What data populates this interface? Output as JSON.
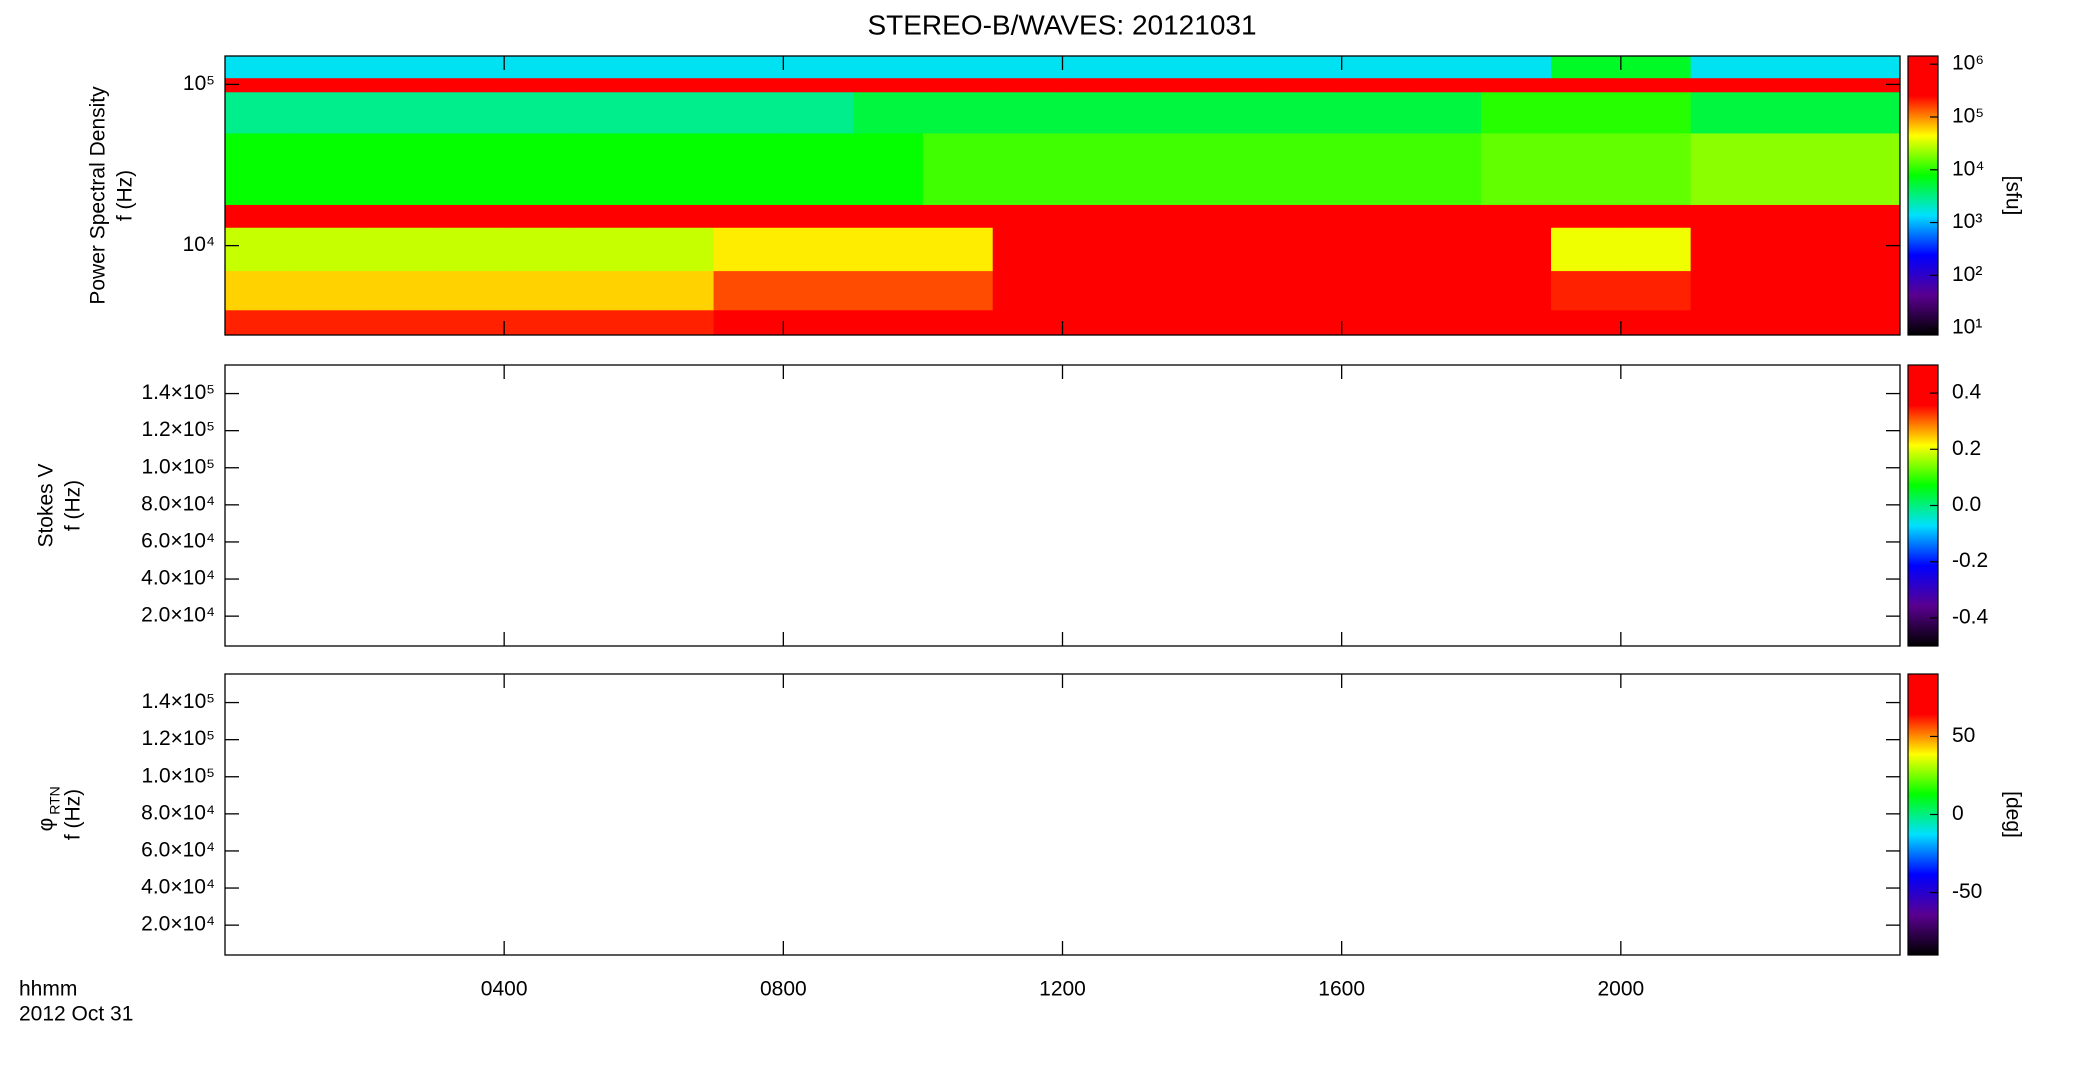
{
  "title": "STEREO-B/WAVES: 20121031",
  "colormap": [
    "#000000",
    "#5a0090",
    "#0000ff",
    "#00e0ff",
    "#00ff00",
    "#ffff00",
    "#ff0000",
    "#ff0000"
  ],
  "x_axis": {
    "label": "hhmm",
    "date": "2012 Oct 31",
    "xlim": [
      0,
      24
    ],
    "xticks": [
      {
        "value": 4,
        "label": "0400"
      },
      {
        "value": 8,
        "label": "0800"
      },
      {
        "value": 12,
        "label": "1200"
      },
      {
        "value": 16,
        "label": "1600"
      },
      {
        "value": 20,
        "label": "2000"
      }
    ]
  },
  "chart_data": [
    {
      "type": "heatmap",
      "ylabel": "Power Spectral Density",
      "ylabel2": "f (Hz)",
      "ylog": true,
      "ylim": [
        2790,
        150000
      ],
      "yticks": [
        {
          "value": 10000,
          "label": "10⁴"
        },
        {
          "value": 100000,
          "label": "10⁵"
        }
      ],
      "x_edges": [
        0,
        1,
        2,
        3,
        4,
        5,
        6,
        7,
        8,
        9,
        10,
        11,
        12,
        13,
        14,
        15,
        16,
        17,
        18,
        19,
        20,
        21,
        22,
        23,
        24
      ],
      "y_edges": [
        2790,
        4000,
        7000,
        13000,
        18000,
        50000,
        90000,
        110000,
        150000
      ],
      "z": [
        [
          200000,
          200000,
          200000,
          200000,
          200000,
          200000,
          200000,
          300000,
          300000,
          300000,
          300000,
          1000000,
          1000000,
          1000000,
          1000000,
          1000000,
          1000000,
          1000000,
          1000000,
          1000000,
          1000000,
          1000000,
          1000000,
          1000000
        ],
        [
          60000,
          60000,
          60000,
          60000,
          60000,
          60000,
          60000,
          150000,
          150000,
          150000,
          150000,
          1000000,
          1000000,
          1000000,
          1000000,
          1000000,
          1000000,
          1000000,
          1000000,
          200000,
          200000,
          1000000,
          1000000,
          1000000
        ],
        [
          30000,
          30000,
          30000,
          30000,
          30000,
          30000,
          30000,
          50000,
          50000,
          50000,
          50000,
          300000,
          300000,
          300000,
          300000,
          300000,
          300000,
          300000,
          300000,
          40000,
          40000,
          300000,
          300000,
          300000
        ],
        [
          1000000,
          1000000,
          1000000,
          1000000,
          1000000,
          1000000,
          1000000,
          1000000,
          1000000,
          1000000,
          1000000,
          1000000,
          1000000,
          1000000,
          1000000,
          1000000,
          1000000,
          1000000,
          1000000,
          1000000,
          1000000,
          1000000,
          1000000,
          1000000
        ],
        [
          8000,
          8000,
          8000,
          8000,
          8000,
          8000,
          8000,
          8000,
          8000,
          8000,
          12000,
          12000,
          12000,
          12000,
          12000,
          12000,
          12000,
          12000,
          15000,
          15000,
          15000,
          20000,
          20000,
          20000
        ],
        [
          3000,
          3000,
          3000,
          3000,
          3000,
          3000,
          3000,
          3000,
          3000,
          5000,
          5000,
          5000,
          5000,
          5000,
          5000,
          5000,
          5000,
          5000,
          10000,
          10000,
          10000,
          5000,
          5000,
          5000
        ],
        [
          500000,
          500000,
          500000,
          500000,
          500000,
          500000,
          500000,
          500000,
          500000,
          500000,
          500000,
          500000,
          500000,
          500000,
          500000,
          500000,
          500000,
          500000,
          500000,
          500000,
          500000,
          500000,
          500000,
          500000
        ],
        [
          1500,
          1500,
          1500,
          1500,
          1500,
          1500,
          1500,
          1500,
          1500,
          1500,
          1500,
          1500,
          1500,
          1500,
          1500,
          1500,
          1500,
          1500,
          1500,
          6000,
          6000,
          1500,
          1500,
          1500
        ]
      ],
      "clog": true,
      "clim": [
        7.4,
        1430000
      ],
      "cticks": [
        {
          "value": 10,
          "label": "10¹"
        },
        {
          "value": 100,
          "label": "10²"
        },
        {
          "value": 1000,
          "label": "10³"
        },
        {
          "value": 10000,
          "label": "10⁴"
        },
        {
          "value": 100000,
          "label": "10⁵"
        },
        {
          "value": 1000000,
          "label": "10⁶"
        }
      ],
      "clabel": "[sfu]"
    },
    {
      "type": "heatmap",
      "ylabel": "Stokes V",
      "ylabel2": "f (Hz)",
      "ylog": false,
      "ylim": [
        3900,
        155400
      ],
      "yticks": [
        {
          "value": 20000,
          "label": "2.0×10⁴"
        },
        {
          "value": 40000,
          "label": "4.0×10⁴"
        },
        {
          "value": 60000,
          "label": "6.0×10⁴"
        },
        {
          "value": 80000,
          "label": "8.0×10⁴"
        },
        {
          "value": 100000,
          "label": "1.0×10⁵"
        },
        {
          "value": 120000,
          "label": "1.2×10⁵"
        },
        {
          "value": 140000,
          "label": "1.4×10⁵"
        }
      ],
      "clog": false,
      "clim": [
        -0.5,
        0.5
      ],
      "cticks": [
        0.4,
        0.2,
        {
          "value": 0,
          "label": "0.0"
        },
        -0.2,
        -0.4
      ]
    },
    {
      "type": "heatmap",
      "ylabel": "φ",
      "ylabel_sub": "RTN",
      "ylabel2": "f (Hz)",
      "ylog": false,
      "ylim": [
        3900,
        155400
      ],
      "yticks": [
        {
          "value": 20000,
          "label": "2.0×10⁴"
        },
        {
          "value": 40000,
          "label": "4.0×10⁴"
        },
        {
          "value": 60000,
          "label": "6.0×10⁴"
        },
        {
          "value": 80000,
          "label": "8.0×10⁴"
        },
        {
          "value": 100000,
          "label": "1.0×10⁵"
        },
        {
          "value": 120000,
          "label": "1.2×10⁵"
        },
        {
          "value": 140000,
          "label": "1.4×10⁵"
        }
      ],
      "clog": false,
      "clim": [
        -90,
        90
      ],
      "cticks": [
        50,
        0,
        -50
      ],
      "clabel": "[deg]"
    }
  ]
}
